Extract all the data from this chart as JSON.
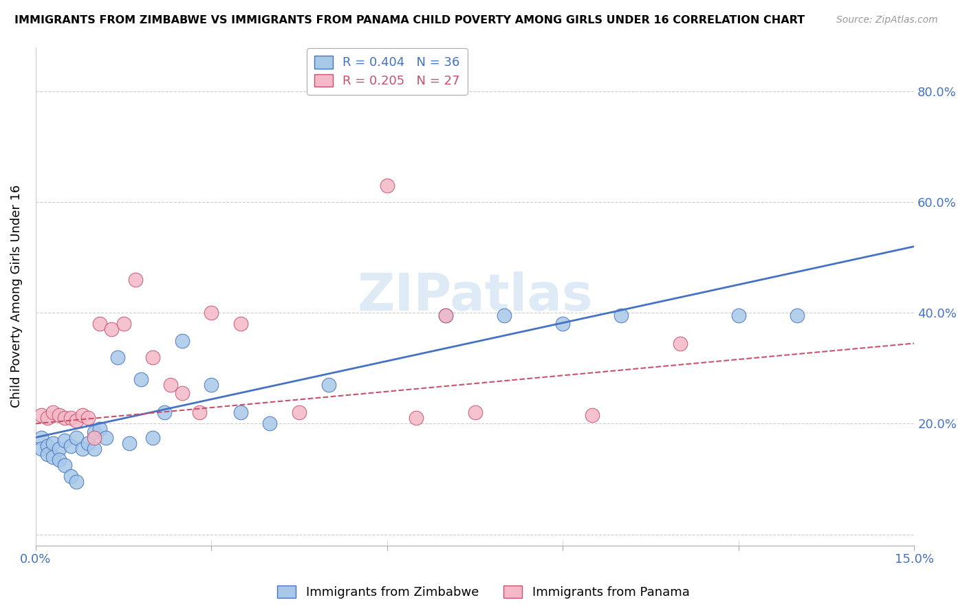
{
  "title": "IMMIGRANTS FROM ZIMBABWE VS IMMIGRANTS FROM PANAMA CHILD POVERTY AMONG GIRLS UNDER 16 CORRELATION CHART",
  "source": "Source: ZipAtlas.com",
  "ylabel": "Child Poverty Among Girls Under 16",
  "y_ticks": [
    0.0,
    0.2,
    0.4,
    0.6,
    0.8
  ],
  "y_tick_labels": [
    "",
    "20.0%",
    "40.0%",
    "60.0%",
    "80.0%"
  ],
  "x_range": [
    0.0,
    0.15
  ],
  "y_range": [
    -0.02,
    0.88
  ],
  "watermark": "ZIPatlas",
  "legend1_label": "R = 0.404   N = 36",
  "legend2_label": "R = 0.205   N = 27",
  "blue_color": "#a8c8e8",
  "pink_color": "#f4b8c8",
  "blue_line_color": "#4472c4",
  "pink_line_color": "#c9506a",
  "axis_color": "#4472c4",
  "zimbabwe_x": [
    0.001,
    0.001,
    0.002,
    0.002,
    0.003,
    0.003,
    0.004,
    0.004,
    0.005,
    0.005,
    0.006,
    0.006,
    0.007,
    0.007,
    0.008,
    0.009,
    0.01,
    0.01,
    0.011,
    0.012,
    0.014,
    0.016,
    0.018,
    0.02,
    0.022,
    0.025,
    0.03,
    0.035,
    0.04,
    0.05,
    0.07,
    0.08,
    0.09,
    0.1,
    0.12,
    0.13
  ],
  "zimbabwe_y": [
    0.175,
    0.155,
    0.16,
    0.145,
    0.165,
    0.14,
    0.155,
    0.135,
    0.17,
    0.125,
    0.16,
    0.105,
    0.175,
    0.095,
    0.155,
    0.165,
    0.185,
    0.155,
    0.19,
    0.175,
    0.32,
    0.165,
    0.28,
    0.175,
    0.22,
    0.35,
    0.27,
    0.22,
    0.2,
    0.27,
    0.395,
    0.395,
    0.38,
    0.395,
    0.395,
    0.395
  ],
  "panama_x": [
    0.001,
    0.002,
    0.003,
    0.004,
    0.005,
    0.006,
    0.007,
    0.008,
    0.009,
    0.01,
    0.011,
    0.013,
    0.015,
    0.017,
    0.02,
    0.023,
    0.025,
    0.028,
    0.03,
    0.035,
    0.045,
    0.06,
    0.065,
    0.07,
    0.075,
    0.095,
    0.11
  ],
  "panama_y": [
    0.215,
    0.21,
    0.22,
    0.215,
    0.21,
    0.21,
    0.205,
    0.215,
    0.21,
    0.175,
    0.38,
    0.37,
    0.38,
    0.46,
    0.32,
    0.27,
    0.255,
    0.22,
    0.4,
    0.38,
    0.22,
    0.63,
    0.21,
    0.395,
    0.22,
    0.215,
    0.345
  ],
  "zim_line_x0": 0.0,
  "zim_line_y0": 0.175,
  "zim_line_x1": 0.15,
  "zim_line_y1": 0.52,
  "pan_line_x0": 0.0,
  "pan_line_y0": 0.2,
  "pan_line_x1": 0.15,
  "pan_line_y1": 0.345
}
